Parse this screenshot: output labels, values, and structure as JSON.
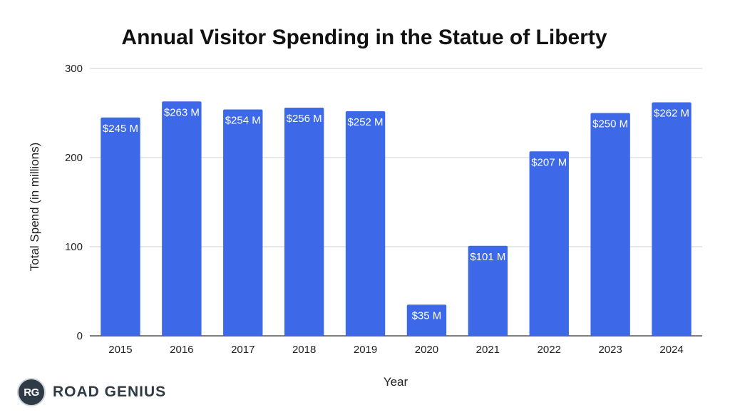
{
  "chart_data": {
    "type": "bar",
    "title": "Annual Visitor Spending in the Statue of Liberty",
    "xlabel": "Year",
    "ylabel": "Total Spend (in millions)",
    "ylim": [
      0,
      300
    ],
    "yticks": [
      "0",
      "100",
      "200",
      "300"
    ],
    "grid": true,
    "categories": [
      "2015",
      "2016",
      "2017",
      "2018",
      "2019",
      "2020",
      "2021",
      "2022",
      "2023",
      "2024"
    ],
    "values": [
      245,
      263,
      254,
      256,
      252,
      35,
      101,
      207,
      250,
      262
    ],
    "data_labels": [
      "$245 M",
      "$263 M",
      "$254 M",
      "$256 M",
      "$252 M",
      "$35 M",
      "$101 M",
      "$207 M",
      "$250 M",
      "$262 M"
    ],
    "bar_color": "#3D69E8"
  },
  "brand": {
    "badge": "RG",
    "name": "ROAD GENIUS"
  }
}
